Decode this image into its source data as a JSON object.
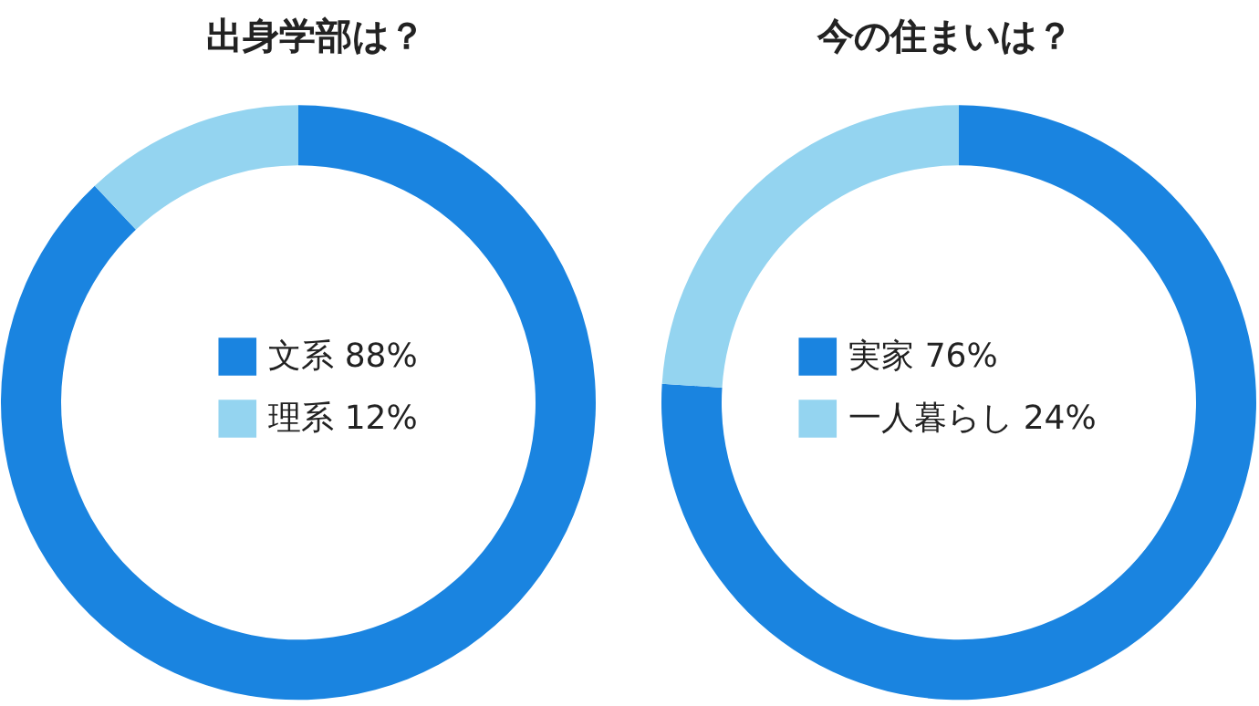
{
  "chart_data": [
    {
      "type": "donut",
      "title": "出身学部は？",
      "categories": [
        "文系",
        "理系"
      ],
      "values": [
        88,
        12
      ],
      "colors": [
        "#1a84e0",
        "#94d4f0"
      ],
      "value_labels": [
        "88%",
        "12%"
      ],
      "legend": "center"
    },
    {
      "type": "donut",
      "title": "今の住まいは？",
      "categories": [
        "実家",
        "一人暮らし"
      ],
      "values": [
        76,
        24
      ],
      "colors": [
        "#1a84e0",
        "#94d4f0"
      ],
      "value_labels": [
        "76%",
        "24%"
      ],
      "legend": "center"
    }
  ]
}
